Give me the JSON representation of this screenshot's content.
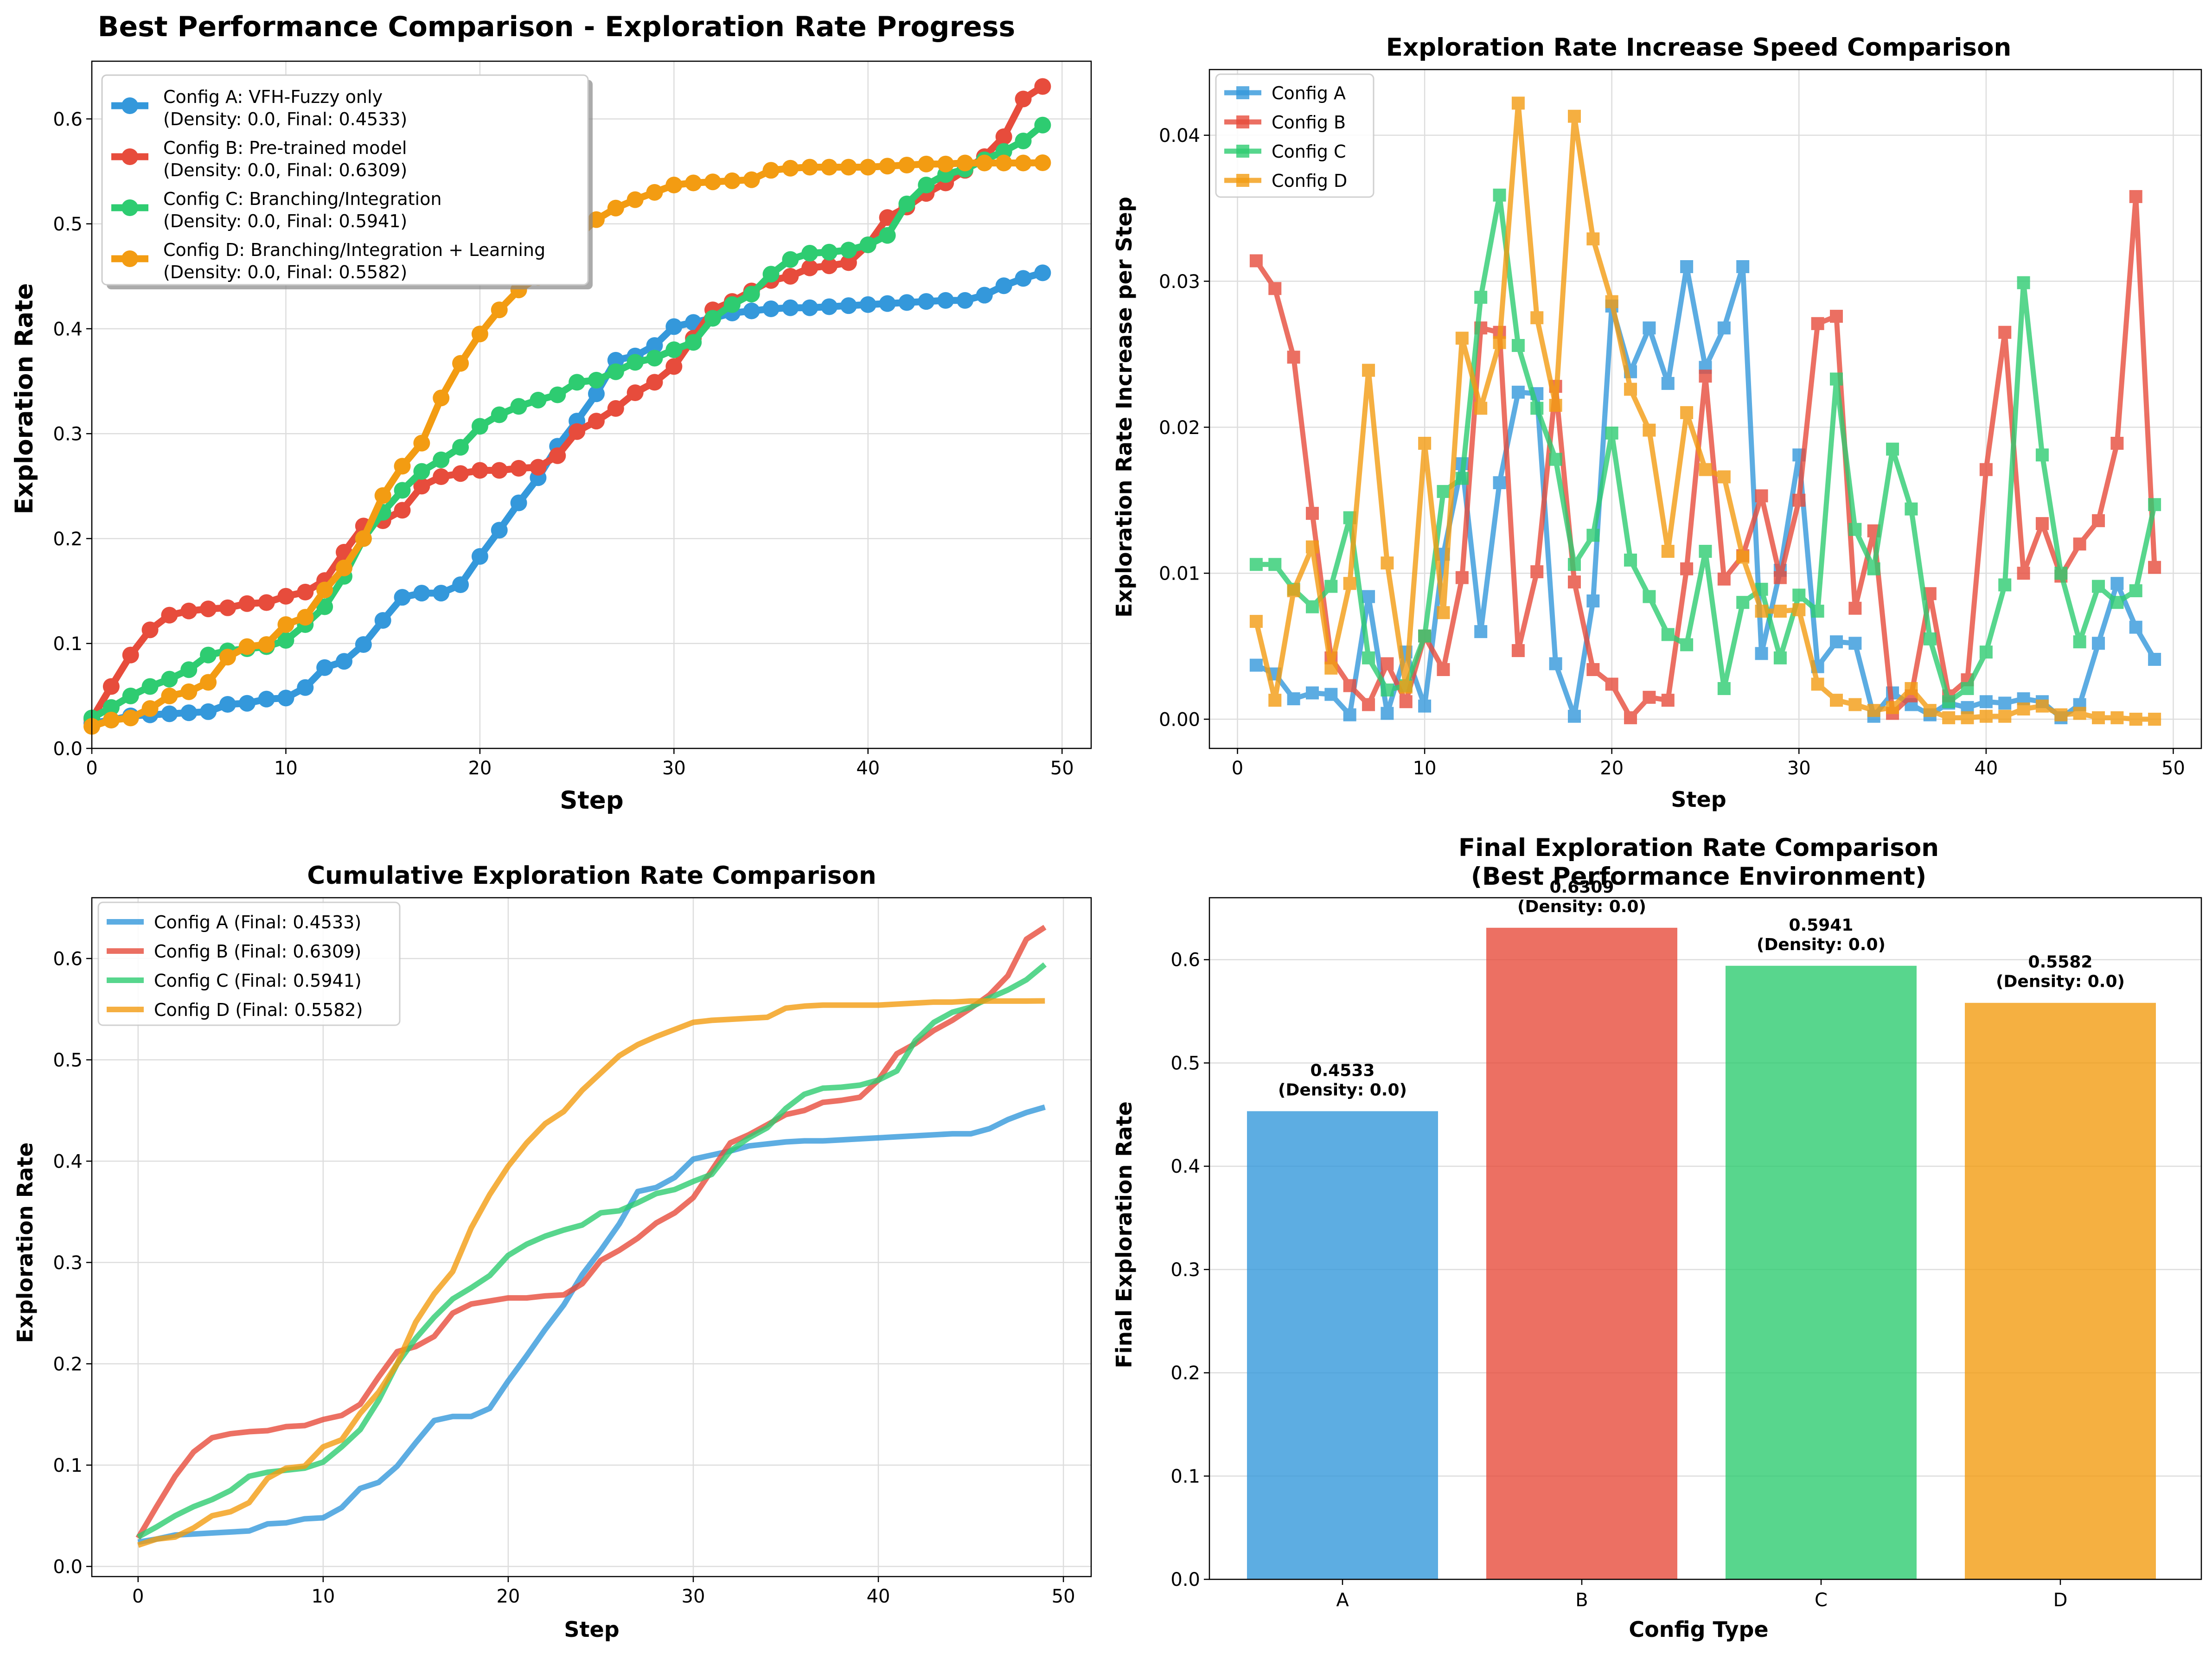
{
  "colors": {
    "A": "#3498db",
    "B": "#e74c3c",
    "C": "#2ecc71",
    "D": "#f39c12"
  },
  "steps": [
    0,
    1,
    2,
    3,
    4,
    5,
    6,
    7,
    8,
    9,
    10,
    11,
    12,
    13,
    14,
    15,
    16,
    17,
    18,
    19,
    20,
    21,
    22,
    23,
    24,
    25,
    26,
    27,
    28,
    29,
    30,
    31,
    32,
    33,
    34,
    35,
    36,
    37,
    38,
    39,
    40,
    41,
    42,
    43,
    44,
    45,
    46,
    47,
    48,
    49
  ],
  "chart_data": [
    {
      "type": "line",
      "title": "Best Performance Comparison - Exploration Rate Progress",
      "xlabel": "Step",
      "ylabel": "Exploration Rate",
      "xlim": [
        0,
        51.5
      ],
      "ylim": [
        0,
        0.655
      ],
      "xticks": [
        "0",
        "10",
        "20",
        "30",
        "40",
        "50"
      ],
      "yticks": [
        "0.0",
        "0.1",
        "0.2",
        "0.3",
        "0.4",
        "0.5",
        "0.6"
      ],
      "grid": true,
      "legend": "top-left",
      "markers": "circle",
      "series": [
        {
          "key": "A",
          "name": "Config A: VFH-Fuzzy only",
          "name2": "(Density: 0.0, Final: 0.4533)",
          "values": [
            0.024,
            0.027,
            0.031,
            0.032,
            0.033,
            0.034,
            0.035,
            0.042,
            0.043,
            0.047,
            0.048,
            0.058,
            0.077,
            0.083,
            0.099,
            0.122,
            0.144,
            0.148,
            0.148,
            0.156,
            0.183,
            0.208,
            0.234,
            0.258,
            0.288,
            0.312,
            0.338,
            0.37,
            0.374,
            0.384,
            0.402,
            0.406,
            0.41,
            0.415,
            0.417,
            0.419,
            0.42,
            0.42,
            0.421,
            0.422,
            0.423,
            0.424,
            0.425,
            0.426,
            0.427,
            0.427,
            0.432,
            0.441,
            0.448,
            0.4533
          ]
        },
        {
          "key": "B",
          "name": "Config B: Pre-trained model",
          "name2": "(Density: 0.0, Final: 0.6309)",
          "values": [
            0.028,
            0.059,
            0.089,
            0.113,
            0.127,
            0.131,
            0.133,
            0.134,
            0.138,
            0.139,
            0.145,
            0.149,
            0.16,
            0.187,
            0.212,
            0.217,
            0.227,
            0.25,
            0.259,
            0.262,
            0.265,
            0.265,
            0.267,
            0.268,
            0.279,
            0.302,
            0.312,
            0.324,
            0.339,
            0.349,
            0.364,
            0.391,
            0.418,
            0.426,
            0.436,
            0.446,
            0.45,
            0.458,
            0.46,
            0.463,
            0.48,
            0.506,
            0.516,
            0.529,
            0.539,
            0.551,
            0.564,
            0.583,
            0.619,
            0.6309
          ]
        },
        {
          "key": "C",
          "name": "Config C: Branching/Integration",
          "name2": "(Density: 0.0, Final: 0.5941)",
          "values": [
            0.029,
            0.039,
            0.05,
            0.059,
            0.066,
            0.075,
            0.089,
            0.093,
            0.095,
            0.097,
            0.103,
            0.118,
            0.135,
            0.164,
            0.2,
            0.225,
            0.246,
            0.264,
            0.275,
            0.287,
            0.307,
            0.318,
            0.326,
            0.332,
            0.337,
            0.349,
            0.351,
            0.359,
            0.368,
            0.372,
            0.38,
            0.387,
            0.41,
            0.423,
            0.433,
            0.452,
            0.466,
            0.472,
            0.473,
            0.475,
            0.48,
            0.489,
            0.519,
            0.537,
            0.547,
            0.552,
            0.561,
            0.569,
            0.579,
            0.5941
          ]
        },
        {
          "key": "D",
          "name": "Config D: Branching/Integration + Learning",
          "name2": "(Density: 0.0, Final: 0.5582)",
          "values": [
            0.021,
            0.027,
            0.029,
            0.038,
            0.05,
            0.054,
            0.063,
            0.087,
            0.097,
            0.099,
            0.118,
            0.125,
            0.151,
            0.172,
            0.2,
            0.241,
            0.269,
            0.291,
            0.334,
            0.367,
            0.395,
            0.418,
            0.437,
            0.449,
            0.47,
            0.487,
            0.504,
            0.515,
            0.523,
            0.53,
            0.537,
            0.539,
            0.54,
            0.541,
            0.542,
            0.551,
            0.553,
            0.554,
            0.554,
            0.554,
            0.554,
            0.555,
            0.556,
            0.557,
            0.557,
            0.558,
            0.558,
            0.558,
            0.558,
            0.5582
          ]
        }
      ]
    },
    {
      "type": "line",
      "title": "Exploration Rate Increase Speed Comparison",
      "xlabel": "Step",
      "ylabel": "Exploration Rate Increase per Step",
      "xlim": [
        -1.5,
        51.5
      ],
      "ylim": [
        -0.002,
        0.0445
      ],
      "xticks": [
        "0",
        "10",
        "20",
        "30",
        "40",
        "50"
      ],
      "yticks": [
        "0.00",
        "0.01",
        "0.02",
        "0.03",
        "0.04"
      ],
      "grid": true,
      "legend": "top-left",
      "markers": "square",
      "x": [
        1,
        2,
        3,
        4,
        5,
        6,
        7,
        8,
        9,
        10,
        11,
        12,
        13,
        14,
        15,
        16,
        17,
        18,
        19,
        20,
        21,
        22,
        23,
        24,
        25,
        26,
        27,
        28,
        29,
        30,
        31,
        32,
        33,
        34,
        35,
        36,
        37,
        38,
        39,
        40,
        41,
        42,
        43,
        44,
        45,
        46,
        47,
        48,
        49
      ],
      "series": [
        {
          "key": "A",
          "name": "Config A",
          "values": [
            0.0037,
            0.0031,
            0.0014,
            0.0018,
            0.0017,
            0.0003,
            0.0084,
            0.0004,
            0.0046,
            0.0009,
            0.0113,
            0.0175,
            0.006,
            0.0162,
            0.0224,
            0.0223,
            0.0038,
            0.0002,
            0.0081,
            0.0283,
            0.0238,
            0.0268,
            0.023,
            0.031,
            0.0241,
            0.0268,
            0.031,
            0.0045,
            0.0102,
            0.0181,
            0.0036,
            0.0053,
            0.0052,
            0.0002,
            0.0018,
            0.001,
            0.0003,
            0.0011,
            0.0008,
            0.0012,
            0.0011,
            0.0014,
            0.0012,
            0.0001,
            0.001,
            0.0052,
            0.0093,
            0.0063,
            0.0041
          ]
        },
        {
          "key": "B",
          "name": "Config B",
          "values": [
            0.0314,
            0.0295,
            0.0248,
            0.0141,
            0.0042,
            0.0023,
            0.001,
            0.0038,
            0.0012,
            0.0057,
            0.0034,
            0.0097,
            0.0268,
            0.0265,
            0.0047,
            0.0101,
            0.0228,
            0.0094,
            0.0034,
            0.0024,
            0.0001,
            0.0015,
            0.0013,
            0.0103,
            0.0235,
            0.0096,
            0.0112,
            0.0153,
            0.0097,
            0.015,
            0.0271,
            0.0276,
            0.0076,
            0.0129,
            0.0004,
            0.0016,
            0.0086,
            0.0016,
            0.0027,
            0.0171,
            0.0265,
            0.01,
            0.0134,
            0.0098,
            0.012,
            0.0136,
            0.0189,
            0.0358,
            0.0104
          ]
        },
        {
          "key": "C",
          "name": "Config C",
          "values": [
            0.0106,
            0.0106,
            0.0089,
            0.0077,
            0.0091,
            0.0138,
            0.0042,
            0.002,
            0.0023,
            0.0057,
            0.0156,
            0.0165,
            0.0289,
            0.0359,
            0.0256,
            0.0213,
            0.0178,
            0.0106,
            0.0126,
            0.0196,
            0.0109,
            0.0084,
            0.0058,
            0.0051,
            0.0115,
            0.0021,
            0.008,
            0.0089,
            0.0042,
            0.0085,
            0.0074,
            0.0233,
            0.013,
            0.0103,
            0.0185,
            0.0144,
            0.0055,
            0.0012,
            0.0021,
            0.0046,
            0.0092,
            0.0299,
            0.0181,
            0.01,
            0.0053,
            0.0091,
            0.008,
            0.0088,
            0.0147
          ]
        },
        {
          "key": "D",
          "name": "Config D",
          "values": [
            0.0067,
            0.0013,
            0.0088,
            0.0118,
            0.0035,
            0.0093,
            0.0239,
            0.0107,
            0.0022,
            0.0189,
            0.0073,
            0.0261,
            0.0213,
            0.0258,
            0.0422,
            0.0275,
            0.0215,
            0.0413,
            0.0329,
            0.0286,
            0.0226,
            0.0198,
            0.0115,
            0.021,
            0.0171,
            0.0166,
            0.0111,
            0.0074,
            0.0074,
            0.0075,
            0.0024,
            0.0013,
            0.001,
            0.0006,
            0.0008,
            0.0021,
            0.0006,
            0.0001,
            0.0001,
            0.0002,
            0.0002,
            0.0007,
            0.0009,
            0.0003,
            0.0004,
            0.0001,
            0.0001,
            0.0,
            0.0
          ]
        }
      ]
    },
    {
      "type": "line",
      "title": "Cumulative Exploration Rate Comparison",
      "xlabel": "Step",
      "ylabel": "Exploration Rate",
      "xlim": [
        -2.5,
        51.5
      ],
      "ylim": [
        -0.01,
        0.66
      ],
      "xticks": [
        "0",
        "10",
        "20",
        "30",
        "40",
        "50"
      ],
      "yticks": [
        "0.0",
        "0.1",
        "0.2",
        "0.3",
        "0.4",
        "0.5",
        "0.6"
      ],
      "grid": true,
      "legend": "top-left",
      "series_names": [
        "Config A (Final: 0.4533)",
        "Config B (Final: 0.6309)",
        "Config C (Final: 0.5941)",
        "Config D (Final: 0.5582)"
      ],
      "note": "same series values as panel 1"
    },
    {
      "type": "bar",
      "title": "Final Exploration Rate Comparison",
      "subtitle": "(Best Performance Environment)",
      "xlabel": "Config Type",
      "ylabel": "Final Exploration Rate",
      "ylim": [
        0,
        0.66
      ],
      "yticks": [
        "0.0",
        "0.1",
        "0.2",
        "0.3",
        "0.4",
        "0.5",
        "0.6"
      ],
      "categories": [
        "A",
        "B",
        "C",
        "D"
      ],
      "values": [
        0.4533,
        0.6309,
        0.5941,
        0.5582
      ],
      "labels": [
        "0.4533",
        "0.6309",
        "0.5941",
        "0.5582"
      ],
      "sublabel": "(Density: 0.0)",
      "grid": true
    }
  ]
}
